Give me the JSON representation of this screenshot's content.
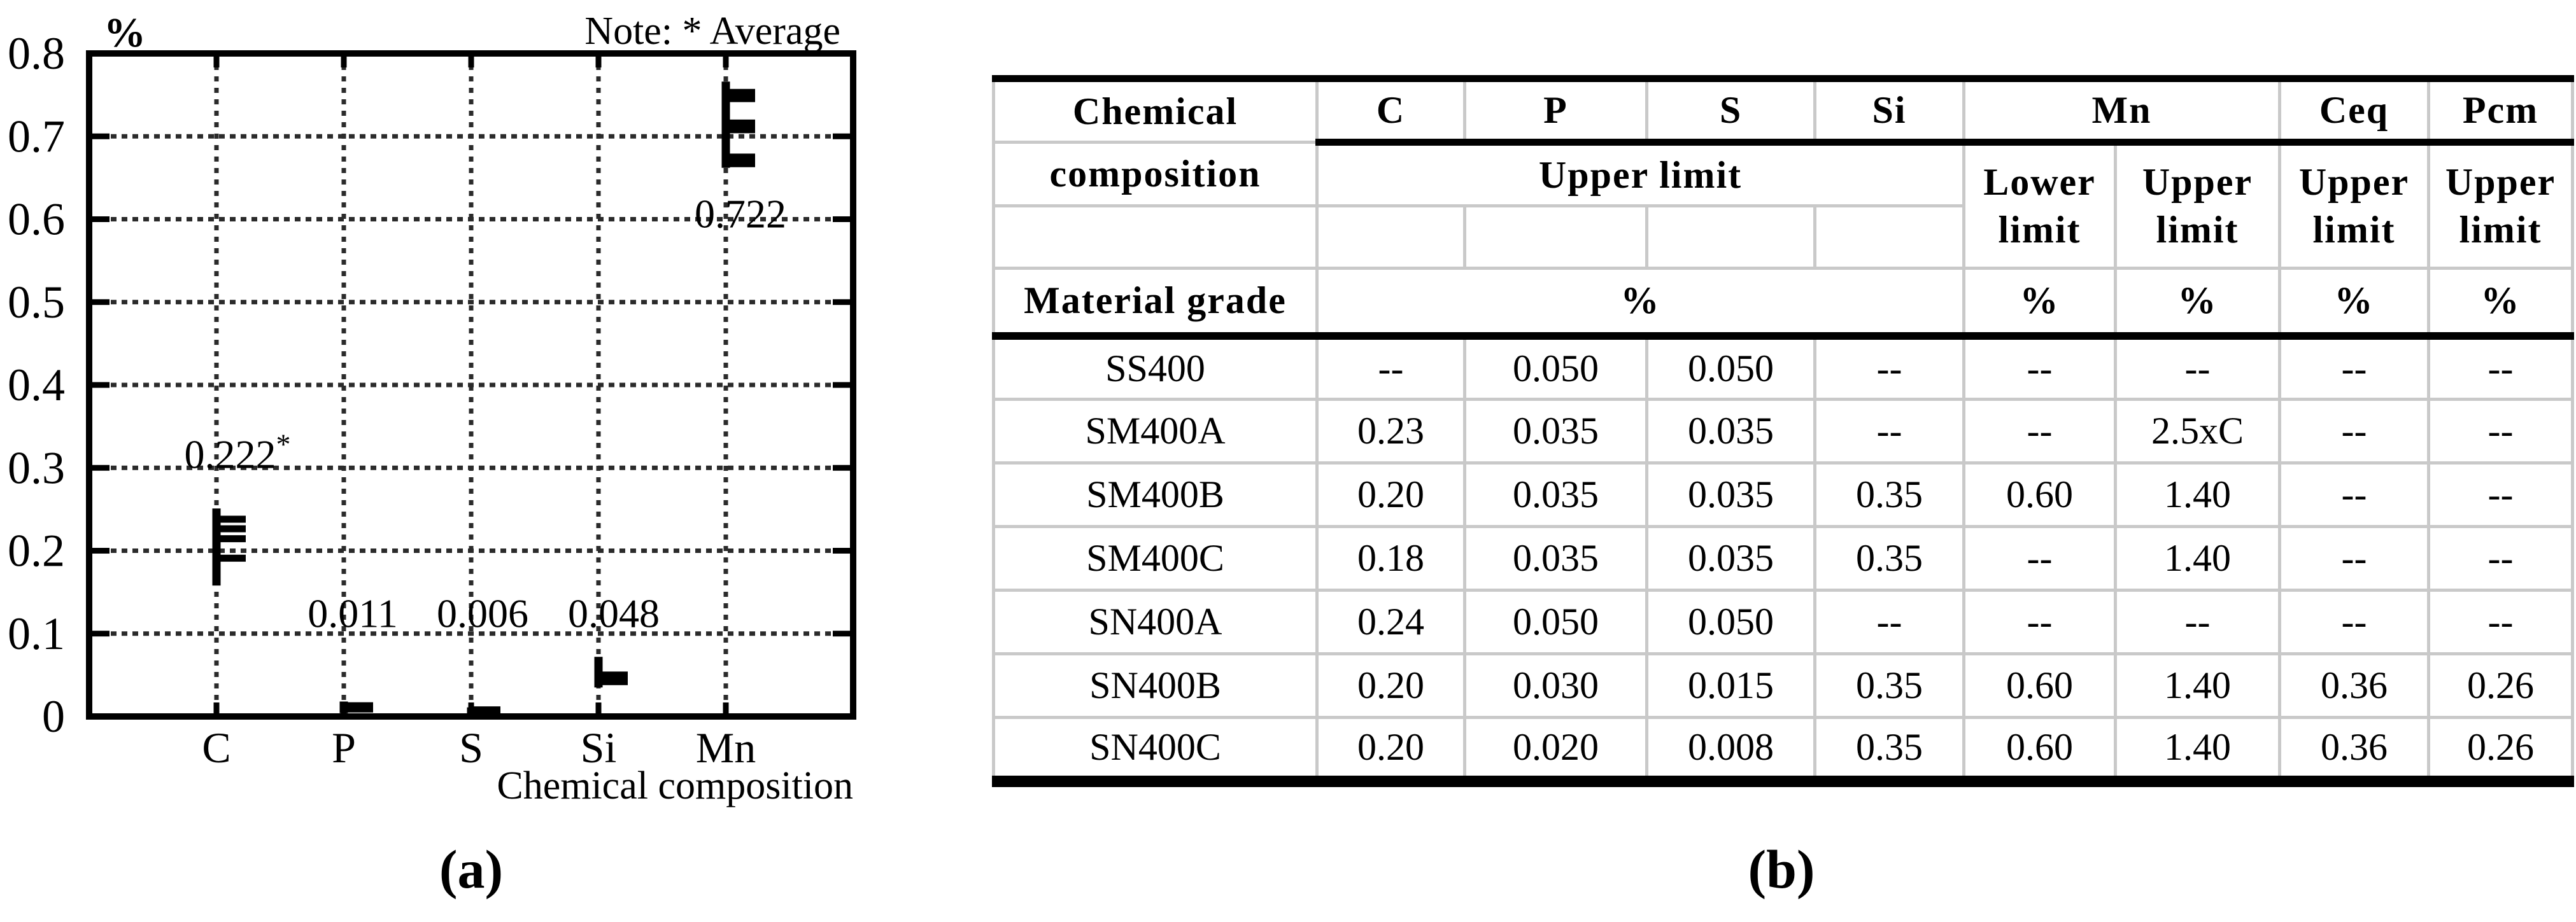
{
  "chart_data": {
    "type": "scatter",
    "note": "Note: * Average",
    "y_unit": "%",
    "xlabel": "Chemical composition",
    "caption": "(a)",
    "ylim": [
      0,
      0.8
    ],
    "grid": "dotted",
    "yticks": [
      {
        "v": 0.0,
        "label": "0"
      },
      {
        "v": 0.1,
        "label": "0.1"
      },
      {
        "v": 0.2,
        "label": "0.2"
      },
      {
        "v": 0.3,
        "label": "0.3"
      },
      {
        "v": 0.4,
        "label": "0.4"
      },
      {
        "v": 0.5,
        "label": "0.5"
      },
      {
        "v": 0.6,
        "label": "0.6"
      },
      {
        "v": 0.7,
        "label": "0.7"
      },
      {
        "v": 0.8,
        "label": "0.8"
      }
    ],
    "categories": [
      "C",
      "P",
      "S",
      "Si",
      "Mn"
    ],
    "series": [
      {
        "element": "C",
        "average": 0.222,
        "range": [
          0.158,
          0.251
        ],
        "ticks": [
          0.238,
          0.2265,
          0.2145,
          0.191
        ],
        "label": "0.222",
        "label_sup": "*",
        "label_dx": 33,
        "label_baseline": 0.3
      },
      {
        "element": "P",
        "average": 0.011,
        "range": [
          0.004,
          0.018
        ],
        "ticks": [
          0.013,
          0.009
        ],
        "label": "0.011",
        "label_sup": "",
        "label_dx": 14,
        "label_baseline": 0.108
      },
      {
        "element": "S",
        "average": 0.006,
        "range": [
          0.003,
          0.011
        ],
        "ticks": [
          0.008,
          0.005
        ],
        "label": "0.006",
        "label_sup": "",
        "label_dx": 18,
        "label_baseline": 0.108
      },
      {
        "element": "Si",
        "average": 0.048,
        "range": [
          0.035,
          0.072
        ],
        "ticks": [
          0.05,
          0.042
        ],
        "label": "0.048",
        "label_sup": "",
        "label_dx": 24,
        "label_baseline": 0.108
      },
      {
        "element": "Mn",
        "average": 0.722,
        "range": [
          0.662,
          0.766
        ],
        "ticks": [
          0.753,
          0.7455,
          0.716,
          0.708,
          0.675,
          0.667
        ],
        "label": "0.722",
        "label_sup": "",
        "label_dx": 23,
        "label_baseline": 0.59
      }
    ]
  },
  "table": {
    "caption": "(b)",
    "header": {
      "title_line1": "Chemical",
      "title_line2": "composition",
      "row_label": "Material grade",
      "columns": [
        "C",
        "P",
        "S",
        "Si",
        "Mn",
        "Ceq",
        "Pcm"
      ],
      "upper_limit": "Upper limit",
      "mn_lower_limit": "Lower limit",
      "mn_upper_limit": "Upper limit",
      "ceq_upper_limit": "Upper limit",
      "pcm_upper_limit": "Upper limit",
      "unit": "%"
    },
    "rows": [
      [
        "SS400",
        "--",
        "0.050",
        "0.050",
        "--",
        "--",
        "--",
        "--",
        "--"
      ],
      [
        "SM400A",
        "0.23",
        "0.035",
        "0.035",
        "--",
        "--",
        "2.5xC",
        "--",
        "--"
      ],
      [
        "SM400B",
        "0.20",
        "0.035",
        "0.035",
        "0.35",
        "0.60",
        "1.40",
        "--",
        "--"
      ],
      [
        "SM400C",
        "0.18",
        "0.035",
        "0.035",
        "0.35",
        "--",
        "1.40",
        "--",
        "--"
      ],
      [
        "SN400A",
        "0.24",
        "0.050",
        "0.050",
        "--",
        "--",
        "--",
        "--",
        "--"
      ],
      [
        "SN400B",
        "0.20",
        "0.030",
        "0.015",
        "0.35",
        "0.60",
        "1.40",
        "0.36",
        "0.26"
      ],
      [
        "SN400C",
        "0.20",
        "0.020",
        "0.008",
        "0.35",
        "0.60",
        "1.40",
        "0.36",
        "0.26"
      ]
    ]
  }
}
